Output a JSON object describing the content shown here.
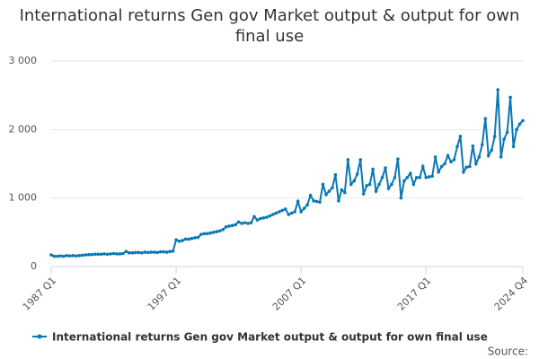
{
  "chart_data": {
    "type": "line",
    "title": "International returns Gen gov Market output & output for own final use",
    "source": "Source:",
    "categories": [
      "1987 Q1",
      null,
      null,
      null,
      null,
      null,
      null,
      null,
      null,
      null,
      null,
      null,
      null,
      null,
      null,
      null,
      null,
      null,
      null,
      null,
      null,
      null,
      null,
      null,
      null,
      null,
      null,
      null,
      null,
      null,
      null,
      null,
      null,
      null,
      null,
      null,
      null,
      null,
      null,
      null,
      "1997 Q1",
      null,
      null,
      null,
      null,
      null,
      null,
      null,
      null,
      null,
      null,
      null,
      null,
      null,
      null,
      null,
      null,
      null,
      null,
      null,
      null,
      null,
      null,
      null,
      null,
      null,
      null,
      null,
      null,
      null,
      null,
      null,
      null,
      null,
      null,
      null,
      null,
      null,
      null,
      null,
      "2007 Q1",
      null,
      null,
      null,
      null,
      null,
      null,
      null,
      null,
      null,
      null,
      null,
      null,
      null,
      null,
      null,
      null,
      null,
      null,
      null,
      null,
      null,
      null,
      null,
      null,
      null,
      null,
      null,
      null,
      null,
      null,
      null,
      null,
      null,
      null,
      null,
      null,
      null,
      null,
      null,
      "2017 Q1",
      null,
      null,
      null,
      null,
      null,
      null,
      null,
      null,
      null,
      null,
      null,
      null,
      null,
      null,
      null,
      null,
      null,
      null,
      null,
      null,
      null,
      null,
      null,
      null,
      null,
      null,
      null,
      null,
      null,
      null,
      "2024 Q4"
    ],
    "series": [
      {
        "name": "International returns Gen gov Market output & output for own final use",
        "color": "#0a78b4",
        "values": [
          170,
          150,
          150,
          155,
          150,
          160,
          155,
          160,
          155,
          160,
          165,
          170,
          175,
          175,
          180,
          180,
          180,
          185,
          180,
          185,
          190,
          185,
          185,
          190,
          220,
          200,
          200,
          205,
          205,
          200,
          210,
          205,
          210,
          210,
          205,
          215,
          215,
          210,
          220,
          225,
          390,
          370,
          380,
          400,
          400,
          410,
          420,
          425,
          470,
          480,
          480,
          490,
          500,
          510,
          520,
          540,
          580,
          590,
          600,
          610,
          650,
          630,
          640,
          630,
          640,
          730,
          680,
          700,
          710,
          720,
          740,
          760,
          780,
          800,
          820,
          840,
          760,
          780,
          800,
          950,
          800,
          850,
          900,
          1040,
          960,
          950,
          940,
          1200,
          1050,
          1100,
          1150,
          1340,
          960,
          1120,
          1080,
          1560,
          1200,
          1250,
          1350,
          1560,
          1060,
          1180,
          1200,
          1420,
          1100,
          1200,
          1300,
          1440,
          1140,
          1200,
          1300,
          1570,
          1000,
          1250,
          1300,
          1360,
          1200,
          1300,
          1300,
          1460,
          1300,
          1310,
          1320,
          1600,
          1380,
          1460,
          1500,
          1620,
          1530,
          1560,
          1750,
          1900,
          1380,
          1450,
          1460,
          1760,
          1500,
          1600,
          1780,
          2160,
          1620,
          1700,
          1900,
          2580,
          1600,
          1860,
          1960,
          2470,
          1750,
          2000,
          2080,
          2130
        ]
      }
    ],
    "ylim": [
      0,
      3000
    ],
    "yticks": [
      {
        "value": 0,
        "label": "0"
      },
      {
        "value": 1000,
        "label": "1 000"
      },
      {
        "value": 2000,
        "label": "2 000"
      },
      {
        "value": 3000,
        "label": "3 000"
      }
    ],
    "grid": true,
    "legend": "bottom"
  }
}
